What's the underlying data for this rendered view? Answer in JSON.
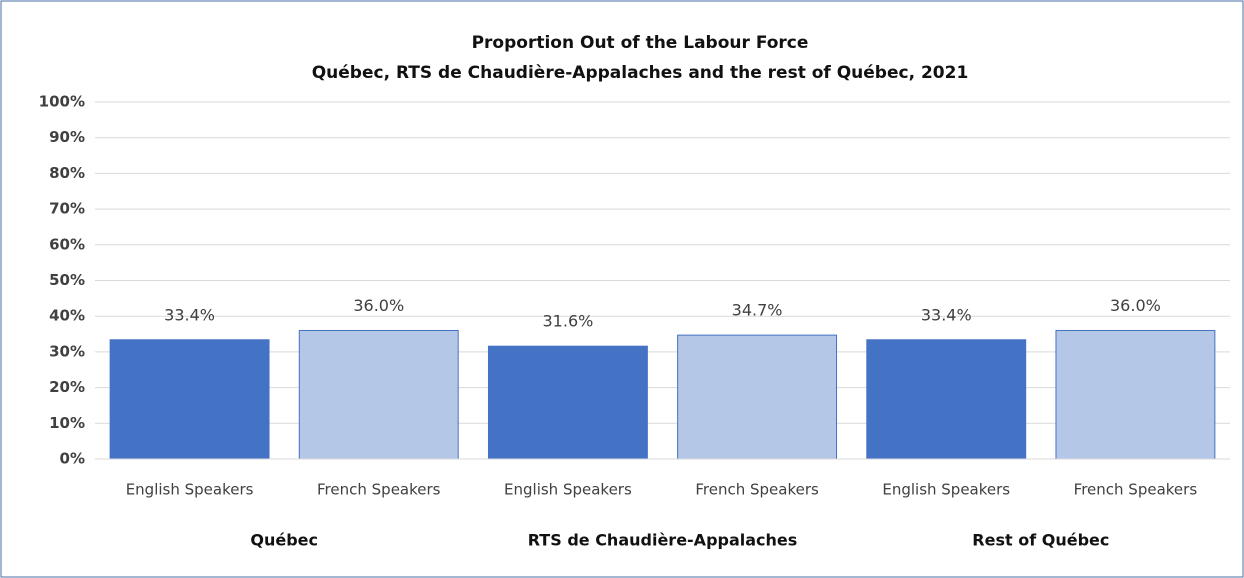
{
  "chart_data": {
    "type": "bar",
    "title": "Proportion Out of the Labour Force",
    "subtitle": "Québec, RTS de Chaudière-Appalaches  and the rest of Québec, 2021",
    "colors": [
      "#4472c4",
      "#b4c7e7"
    ],
    "groups": [
      {
        "name": "Québec",
        "categories": [
          "English Speakers",
          "French Speakers"
        ],
        "values": [
          33.4,
          36.0
        ],
        "value_labels": [
          "33.4%",
          "36.0%"
        ]
      },
      {
        "name": "RTS de Chaudière-Appalaches",
        "categories": [
          "English Speakers",
          "French Speakers"
        ],
        "values": [
          31.6,
          34.7
        ],
        "value_labels": [
          "31.6%",
          "34.7%"
        ]
      },
      {
        "name": "Rest of Québec",
        "categories": [
          "English Speakers",
          "French Speakers"
        ],
        "values": [
          33.4,
          36.0
        ],
        "value_labels": [
          "33.4%",
          "36.0%"
        ]
      }
    ],
    "ylim": [
      0,
      100
    ],
    "yticks": [
      {
        "value": 0,
        "label": "0%"
      },
      {
        "value": 10,
        "label": "10%"
      },
      {
        "value": 20,
        "label": "20%"
      },
      {
        "value": 30,
        "label": "30%"
      },
      {
        "value": 40,
        "label": "40%"
      },
      {
        "value": 50,
        "label": "50%"
      },
      {
        "value": 60,
        "label": "60%"
      },
      {
        "value": 70,
        "label": "70%"
      },
      {
        "value": 80,
        "label": "80%"
      },
      {
        "value": 90,
        "label": "90%"
      },
      {
        "value": 100,
        "label": "100%"
      }
    ],
    "grid": true
  }
}
